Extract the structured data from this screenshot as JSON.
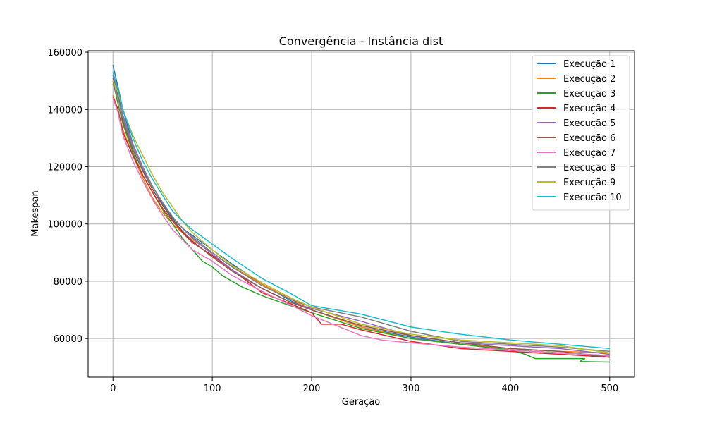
{
  "chart_data": {
    "type": "line",
    "title": "Convergência - Instância dist",
    "xlabel": "Geração",
    "ylabel": "Makespan",
    "xlim": [
      -25,
      525
    ],
    "ylim": [
      46500,
      160500
    ],
    "xticks": [
      0,
      100,
      200,
      300,
      400,
      500
    ],
    "yticks": [
      60000,
      80000,
      100000,
      120000,
      140000,
      160000
    ],
    "grid": true,
    "legend_position": "upper right",
    "series": [
      {
        "name": "Execução 1",
        "color": "#1f77b4",
        "points": [
          [
            0,
            155500
          ],
          [
            5,
            148000
          ],
          [
            10,
            140000
          ],
          [
            20,
            128000
          ],
          [
            30,
            119000
          ],
          [
            40,
            113000
          ],
          [
            50,
            107000
          ],
          [
            60,
            102000
          ],
          [
            70,
            98500
          ],
          [
            80,
            96000
          ],
          [
            100,
            91000
          ],
          [
            120,
            86000
          ],
          [
            150,
            79000
          ],
          [
            180,
            73000
          ],
          [
            200,
            70000
          ],
          [
            250,
            64000
          ],
          [
            300,
            60500
          ],
          [
            350,
            58000
          ],
          [
            400,
            56000
          ],
          [
            450,
            55000
          ],
          [
            500,
            54000
          ]
        ]
      },
      {
        "name": "Execução 2",
        "color": "#ff7f0e",
        "points": [
          [
            0,
            145000
          ],
          [
            5,
            140000
          ],
          [
            10,
            133000
          ],
          [
            20,
            124000
          ],
          [
            30,
            116000
          ],
          [
            40,
            109000
          ],
          [
            50,
            104000
          ],
          [
            60,
            100000
          ],
          [
            70,
            97000
          ],
          [
            80,
            94500
          ],
          [
            100,
            90000
          ],
          [
            120,
            85000
          ],
          [
            150,
            79000
          ],
          [
            180,
            73500
          ],
          [
            200,
            70000
          ],
          [
            250,
            64000
          ],
          [
            300,
            60000
          ],
          [
            350,
            58000
          ],
          [
            400,
            56500
          ],
          [
            450,
            55500
          ],
          [
            500,
            55000
          ]
        ]
      },
      {
        "name": "Execução 3",
        "color": "#2ca02c",
        "points": [
          [
            0,
            150000
          ],
          [
            5,
            142000
          ],
          [
            10,
            135000
          ],
          [
            20,
            125000
          ],
          [
            30,
            117000
          ],
          [
            40,
            111000
          ],
          [
            50,
            105000
          ],
          [
            60,
            100000
          ],
          [
            70,
            95000
          ],
          [
            80,
            91000
          ],
          [
            90,
            87000
          ],
          [
            100,
            85000
          ],
          [
            110,
            82000
          ],
          [
            130,
            78000
          ],
          [
            150,
            75000
          ],
          [
            170,
            72500
          ],
          [
            200,
            69000
          ],
          [
            250,
            63500
          ],
          [
            300,
            60000
          ],
          [
            350,
            58000
          ],
          [
            400,
            56000
          ],
          [
            415,
            54500
          ],
          [
            425,
            53000
          ],
          [
            475,
            53000
          ],
          [
            470,
            52000
          ],
          [
            500,
            51800
          ]
        ]
      },
      {
        "name": "Execução 4",
        "color": "#d62728",
        "points": [
          [
            0,
            144500
          ],
          [
            5,
            140000
          ],
          [
            10,
            132000
          ],
          [
            20,
            124000
          ],
          [
            30,
            117000
          ],
          [
            40,
            111000
          ],
          [
            50,
            105500
          ],
          [
            60,
            101000
          ],
          [
            70,
            97000
          ],
          [
            80,
            93500
          ],
          [
            100,
            89000
          ],
          [
            120,
            84000
          ],
          [
            150,
            76000
          ],
          [
            180,
            72000
          ],
          [
            200,
            69000
          ],
          [
            210,
            65000
          ],
          [
            230,
            65000
          ],
          [
            250,
            63000
          ],
          [
            300,
            59000
          ],
          [
            350,
            56500
          ],
          [
            400,
            55500
          ],
          [
            450,
            54500
          ],
          [
            500,
            53500
          ]
        ]
      },
      {
        "name": "Execução 5",
        "color": "#9467bd",
        "points": [
          [
            0,
            152000
          ],
          [
            5,
            146000
          ],
          [
            10,
            138000
          ],
          [
            20,
            128000
          ],
          [
            30,
            120000
          ],
          [
            40,
            113000
          ],
          [
            50,
            107500
          ],
          [
            60,
            102500
          ],
          [
            70,
            98500
          ],
          [
            80,
            95000
          ],
          [
            100,
            89500
          ],
          [
            120,
            84000
          ],
          [
            150,
            77500
          ],
          [
            180,
            72500
          ],
          [
            200,
            70500
          ],
          [
            250,
            66000
          ],
          [
            300,
            61000
          ],
          [
            350,
            58500
          ],
          [
            400,
            57500
          ],
          [
            450,
            56500
          ],
          [
            500,
            54500
          ]
        ]
      },
      {
        "name": "Execução 6",
        "color": "#8c564b",
        "points": [
          [
            0,
            151000
          ],
          [
            5,
            145000
          ],
          [
            10,
            136000
          ],
          [
            20,
            126000
          ],
          [
            30,
            118500
          ],
          [
            40,
            112000
          ],
          [
            50,
            106500
          ],
          [
            60,
            101500
          ],
          [
            70,
            97500
          ],
          [
            80,
            94000
          ],
          [
            100,
            88500
          ],
          [
            120,
            83500
          ],
          [
            150,
            77500
          ],
          [
            180,
            72500
          ],
          [
            200,
            70000
          ],
          [
            250,
            64500
          ],
          [
            300,
            61000
          ],
          [
            350,
            58500
          ],
          [
            400,
            56500
          ],
          [
            450,
            55500
          ],
          [
            500,
            53500
          ]
        ]
      },
      {
        "name": "Execução 7",
        "color": "#e377c2",
        "points": [
          [
            0,
            144000
          ],
          [
            5,
            139000
          ],
          [
            10,
            131000
          ],
          [
            20,
            122000
          ],
          [
            30,
            115000
          ],
          [
            40,
            108500
          ],
          [
            50,
            103000
          ],
          [
            60,
            98000
          ],
          [
            70,
            94500
          ],
          [
            80,
            91000
          ],
          [
            100,
            87000
          ],
          [
            120,
            82000
          ],
          [
            150,
            76500
          ],
          [
            180,
            71500
          ],
          [
            200,
            68000
          ],
          [
            250,
            61000
          ],
          [
            270,
            59500
          ],
          [
            300,
            58500
          ],
          [
            350,
            57000
          ],
          [
            400,
            56000
          ],
          [
            450,
            55000
          ],
          [
            500,
            54000
          ]
        ]
      },
      {
        "name": "Execução 8",
        "color": "#7f7f7f",
        "points": [
          [
            0,
            149000
          ],
          [
            5,
            144000
          ],
          [
            10,
            137000
          ],
          [
            20,
            127000
          ],
          [
            30,
            119500
          ],
          [
            40,
            113000
          ],
          [
            50,
            107500
          ],
          [
            60,
            102500
          ],
          [
            70,
            98500
          ],
          [
            80,
            95500
          ],
          [
            100,
            90000
          ],
          [
            120,
            85000
          ],
          [
            150,
            78500
          ],
          [
            180,
            73500
          ],
          [
            200,
            71000
          ],
          [
            250,
            67500
          ],
          [
            300,
            62500
          ],
          [
            350,
            59000
          ],
          [
            400,
            58000
          ],
          [
            450,
            57000
          ],
          [
            500,
            55500
          ]
        ]
      },
      {
        "name": "Execução 9",
        "color": "#bcbd22",
        "points": [
          [
            0,
            150000
          ],
          [
            5,
            146000
          ],
          [
            10,
            140000
          ],
          [
            20,
            131000
          ],
          [
            30,
            124000
          ],
          [
            40,
            117000
          ],
          [
            50,
            111000
          ],
          [
            60,
            106000
          ],
          [
            70,
            101000
          ],
          [
            80,
            97000
          ],
          [
            100,
            91000
          ],
          [
            120,
            85500
          ],
          [
            150,
            79500
          ],
          [
            180,
            74000
          ],
          [
            200,
            71000
          ],
          [
            250,
            65000
          ],
          [
            300,
            61500
          ],
          [
            350,
            59500
          ],
          [
            400,
            58500
          ],
          [
            450,
            57500
          ],
          [
            500,
            55000
          ]
        ]
      },
      {
        "name": "Execução 10",
        "color": "#17becf",
        "points": [
          [
            0,
            153000
          ],
          [
            5,
            147000
          ],
          [
            10,
            140000
          ],
          [
            20,
            130000
          ],
          [
            30,
            122000
          ],
          [
            40,
            115500
          ],
          [
            50,
            110000
          ],
          [
            60,
            104500
          ],
          [
            70,
            101000
          ],
          [
            80,
            98000
          ],
          [
            100,
            93000
          ],
          [
            120,
            88000
          ],
          [
            150,
            81000
          ],
          [
            180,
            75500
          ],
          [
            200,
            71500
          ],
          [
            250,
            68500
          ],
          [
            300,
            64000
          ],
          [
            350,
            61500
          ],
          [
            400,
            59500
          ],
          [
            450,
            58000
          ],
          [
            500,
            56500
          ]
        ]
      }
    ]
  }
}
